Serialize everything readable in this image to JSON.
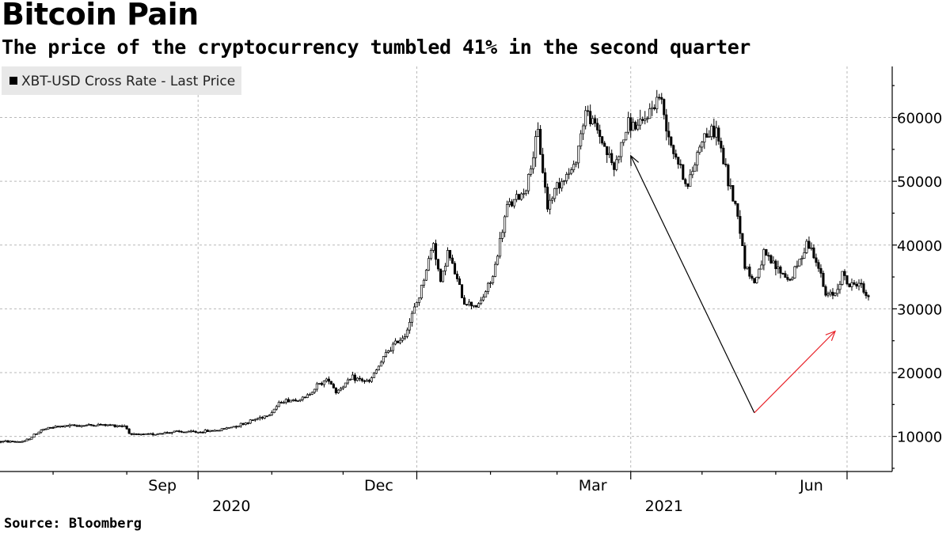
{
  "header": {
    "title": "Bitcoin Pain",
    "subtitle": "The price of the cryptocurrency tumbled 41% in the second quarter"
  },
  "footer": {
    "source": "Source: Bloomberg"
  },
  "colors": {
    "price_line": "#000000",
    "annotation_down": "#000000",
    "annotation_up": "#e8232a",
    "grid": "#b9b9b9"
  },
  "chart_data": {
    "type": "line",
    "title": "Bitcoin Pain",
    "subtitle": "The price of the cryptocurrency tumbled 41% in the second quarter",
    "xlabel": "",
    "ylabel": "",
    "y_axis_side": "right",
    "ylim": [
      4500,
      68000
    ],
    "yticks": [
      10000,
      20000,
      30000,
      40000,
      50000,
      60000
    ],
    "grid": true,
    "legend": {
      "placement": "top-left",
      "entries": [
        "XBT-USD Cross Rate - Last Price"
      ]
    },
    "x_axis": {
      "start": "2020-07-10",
      "end": "2021-07-11",
      "month_ticks": [
        {
          "label": "Sep",
          "date": "2020-09-16"
        },
        {
          "label": "Dec",
          "date": "2020-12-16"
        },
        {
          "label": "Mar",
          "date": "2021-03-16"
        },
        {
          "label": "Jun",
          "date": "2021-06-16"
        }
      ],
      "year_labels": [
        {
          "label": "2020",
          "date": "2020-10-15"
        },
        {
          "label": "2021",
          "date": "2021-04-15"
        }
      ],
      "gridlines": [
        "2020-10-01",
        "2021-01-01",
        "2021-04-01",
        "2021-07-01"
      ],
      "minor_ticks": [
        "2020-08-01",
        "2020-09-01",
        "2020-11-01",
        "2020-12-01",
        "2021-02-01",
        "2021-03-01",
        "2021-05-01",
        "2021-06-01"
      ]
    },
    "series": [
      {
        "name": "XBT-USD Cross Rate - Last Price",
        "style": "candlestick-like daily bars",
        "points": [
          [
            "2020-07-10",
            9200
          ],
          [
            "2020-07-20",
            9200
          ],
          [
            "2020-07-27",
            11000
          ],
          [
            "2020-08-02",
            11500
          ],
          [
            "2020-08-10",
            11700
          ],
          [
            "2020-08-20",
            11800
          ],
          [
            "2020-08-31",
            11700
          ],
          [
            "2020-09-03",
            10200
          ],
          [
            "2020-09-10",
            10300
          ],
          [
            "2020-09-20",
            10700
          ],
          [
            "2020-10-01",
            10700
          ],
          [
            "2020-10-10",
            11000
          ],
          [
            "2020-10-20",
            12000
          ],
          [
            "2020-10-31",
            13500
          ],
          [
            "2020-11-05",
            15500
          ],
          [
            "2020-11-15",
            16000
          ],
          [
            "2020-11-20",
            18000
          ],
          [
            "2020-11-25",
            19000
          ],
          [
            "2020-11-28",
            17000
          ],
          [
            "2020-12-05",
            19200
          ],
          [
            "2020-12-12",
            18500
          ],
          [
            "2020-12-16",
            21000
          ],
          [
            "2020-12-20",
            23500
          ],
          [
            "2020-12-27",
            26000
          ],
          [
            "2021-01-02",
            32000
          ],
          [
            "2021-01-08",
            40500
          ],
          [
            "2021-01-11",
            34000
          ],
          [
            "2021-01-14",
            39000
          ],
          [
            "2021-01-21",
            31000
          ],
          [
            "2021-01-27",
            30500
          ],
          [
            "2021-02-02",
            35000
          ],
          [
            "2021-02-08",
            46000
          ],
          [
            "2021-02-13",
            47500
          ],
          [
            "2021-02-16",
            49000
          ],
          [
            "2021-02-21",
            57500
          ],
          [
            "2021-02-25",
            46000
          ],
          [
            "2021-03-01",
            49500
          ],
          [
            "2021-03-08",
            52000
          ],
          [
            "2021-03-13",
            61000
          ],
          [
            "2021-03-18",
            58000
          ],
          [
            "2021-03-25",
            52000
          ],
          [
            "2021-03-31",
            59000
          ],
          [
            "2021-04-05",
            58500
          ],
          [
            "2021-04-13",
            63500
          ],
          [
            "2021-04-18",
            56000
          ],
          [
            "2021-04-25",
            49000
          ],
          [
            "2021-05-01",
            57000
          ],
          [
            "2021-05-07",
            58000
          ],
          [
            "2021-05-12",
            50000
          ],
          [
            "2021-05-16",
            45000
          ],
          [
            "2021-05-19",
            37000
          ],
          [
            "2021-05-23",
            34000
          ],
          [
            "2021-05-27",
            38500
          ],
          [
            "2021-06-01",
            36500
          ],
          [
            "2021-06-07",
            34500
          ],
          [
            "2021-06-11",
            37500
          ],
          [
            "2021-06-14",
            40500
          ],
          [
            "2021-06-18",
            38000
          ],
          [
            "2021-06-22",
            32000
          ],
          [
            "2021-06-26",
            32500
          ],
          [
            "2021-06-29",
            35500
          ],
          [
            "2021-07-02",
            33500
          ],
          [
            "2021-07-06",
            34200
          ],
          [
            "2021-07-08",
            32700
          ],
          [
            "2021-07-10",
            32000
          ]
        ]
      }
    ],
    "annotations": [
      {
        "type": "arrow",
        "color": "black",
        "from": [
          "2021-05-23",
          13700
        ],
        "to": [
          "2021-04-01",
          54000
        ]
      },
      {
        "type": "arrow",
        "color": "red",
        "from": [
          "2021-05-23",
          13700
        ],
        "to": [
          "2021-06-26",
          26500
        ]
      }
    ]
  }
}
